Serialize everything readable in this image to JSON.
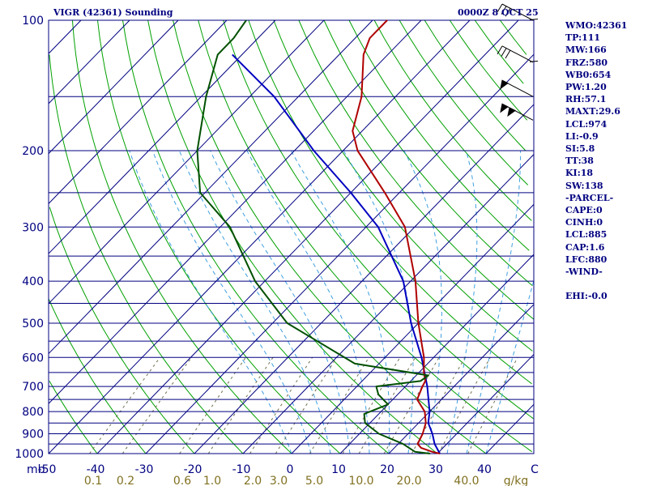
{
  "header": {
    "station": "VIGR (42361) Sounding",
    "time": "0000Z  8 OCT 25"
  },
  "stats": [
    "WMO:42361",
    "TP:111",
    "MW:166",
    "FRZ:580",
    "WB0:654",
    "PW:1.20",
    "RH:57.1",
    "MAXT:29.6",
    "LCL:974",
    "LI:-0.9",
    "SI:5.8",
    "TT:38",
    "KI:18",
    "SW:138",
    "-PARCEL-",
    "CAPE:0",
    "CINH:0",
    "LCL:885",
    "CAP:1.6",
    "LFC:880",
    "-WIND-",
    "",
    "EHI:-0.0"
  ],
  "colors": {
    "isobar": "#000080",
    "isotherm": "#000080",
    "dry_adiabat": "#00a000",
    "moist_adiabat": "#40a0e0",
    "mixing_ratio": "#707050",
    "temperature": "#b00000",
    "dewpoint": "#005000",
    "parcel": "#0000c0",
    "axis_text_temp": "#000080",
    "axis_text_mixing": "#807020"
  },
  "chart_data": {
    "type": "skew-t log-p",
    "x_axis_label": "mb",
    "pressure_ticks": [
      100,
      200,
      300,
      400,
      500,
      600,
      700,
      800,
      900,
      1000
    ],
    "temperature_ticks": [
      -50,
      -40,
      -30,
      -20,
      -10,
      0,
      10,
      20,
      30,
      40
    ],
    "mixing_ratio_ticks": [
      "0.1",
      "0.2",
      "0.6",
      "1.0",
      "2.0",
      "3.0",
      "5.0",
      "10.0",
      "20.0",
      "40.0"
    ],
    "mixing_ratio_unit": "g/kg",
    "temperature_profile": [
      {
        "p": 1000,
        "t": 30.5
      },
      {
        "p": 990,
        "t": 28.5
      },
      {
        "p": 970,
        "t": 25.5
      },
      {
        "p": 950,
        "t": 24.0
      },
      {
        "p": 900,
        "t": 23.0
      },
      {
        "p": 850,
        "t": 21.5
      },
      {
        "p": 800,
        "t": 19.0
      },
      {
        "p": 750,
        "t": 15.0
      },
      {
        "p": 700,
        "t": 13.5
      },
      {
        "p": 680,
        "t": 13.0
      },
      {
        "p": 650,
        "t": 11.0
      },
      {
        "p": 600,
        "t": 8.0
      },
      {
        "p": 500,
        "t": 0.0
      },
      {
        "p": 400,
        "t": -9.0
      },
      {
        "p": 300,
        "t": -22.0
      },
      {
        "p": 250,
        "t": -33.0
      },
      {
        "p": 200,
        "t": -47.0
      },
      {
        "p": 180,
        "t": -52.0
      },
      {
        "p": 150,
        "t": -57.0
      },
      {
        "p": 120,
        "t": -65.0
      },
      {
        "p": 110,
        "t": -67.0
      },
      {
        "p": 100,
        "t": -67.0
      }
    ],
    "dewpoint_profile": [
      {
        "p": 1000,
        "t": 28.5
      },
      {
        "p": 990,
        "t": 25.0
      },
      {
        "p": 950,
        "t": 21.0
      },
      {
        "p": 900,
        "t": 14.0
      },
      {
        "p": 850,
        "t": 9.0
      },
      {
        "p": 810,
        "t": 7.0
      },
      {
        "p": 770,
        "t": 10.0
      },
      {
        "p": 730,
        "t": 6.0
      },
      {
        "p": 700,
        "t": 4.0
      },
      {
        "p": 680,
        "t": 12.0
      },
      {
        "p": 660,
        "t": 12.5
      },
      {
        "p": 620,
        "t": -5.0
      },
      {
        "p": 500,
        "t": -27.0
      },
      {
        "p": 400,
        "t": -42.0
      },
      {
        "p": 300,
        "t": -58.0
      },
      {
        "p": 250,
        "t": -71.0
      },
      {
        "p": 200,
        "t": -80.0
      },
      {
        "p": 150,
        "t": -89.0
      },
      {
        "p": 120,
        "t": -95.0
      },
      {
        "p": 110,
        "t": -95.0
      },
      {
        "p": 100,
        "t": -96.0
      }
    ],
    "parcel_profile": [
      {
        "p": 1000,
        "t": 30.5
      },
      {
        "p": 950,
        "t": 27.5
      },
      {
        "p": 900,
        "t": 25.0
      },
      {
        "p": 850,
        "t": 22.0
      },
      {
        "p": 800,
        "t": 20.0
      },
      {
        "p": 700,
        "t": 14.5
      },
      {
        "p": 600,
        "t": 7.5
      },
      {
        "p": 500,
        "t": -1.5
      },
      {
        "p": 400,
        "t": -11.5
      },
      {
        "p": 300,
        "t": -27.5
      },
      {
        "p": 250,
        "t": -40.0
      },
      {
        "p": 200,
        "t": -56.0
      },
      {
        "p": 150,
        "t": -75.0
      },
      {
        "p": 120,
        "t": -92.0
      }
    ],
    "wind_barbs": [
      {
        "p": 100,
        "kind": "full"
      },
      {
        "p": 125,
        "kind": "full"
      },
      {
        "p": 150,
        "kind": "pennant"
      },
      {
        "p": 170,
        "kind": "pennant2"
      }
    ]
  }
}
